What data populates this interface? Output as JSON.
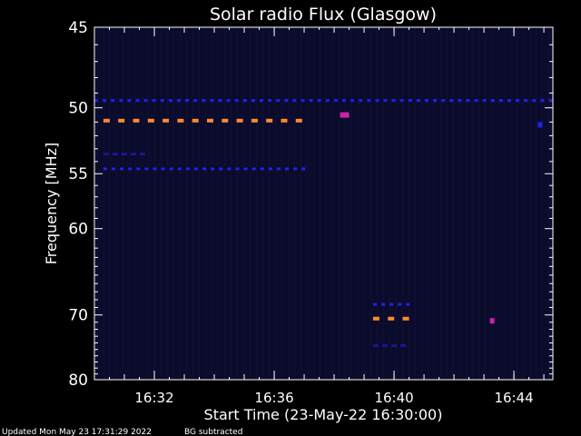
{
  "chart_data": {
    "type": "heatmap",
    "title": "Solar radio Flux (Glasgow)",
    "xlabel": "Start Time (23-May-22 16:30:00)",
    "ylabel": "Frequency [MHz]",
    "x_unit": "minutes after 16:30:00",
    "xlim": [
      0,
      15.3
    ],
    "ylim": [
      45,
      80
    ],
    "y_ticks": [
      45,
      50,
      55,
      60,
      70,
      80
    ],
    "x_ticks": [
      {
        "minute": 2,
        "label": "16:32"
      },
      {
        "minute": 6,
        "label": "16:36"
      },
      {
        "minute": 10,
        "label": "16:40"
      },
      {
        "minute": 14,
        "label": "16:44"
      }
    ],
    "background_color": "#0b0b2a",
    "colors": {
      "blue": "#2020ee",
      "orange": "#ff8a30",
      "magenta": "#cc22aa"
    },
    "features": [
      {
        "name": "dashed line",
        "freq_mhz": 49.5,
        "t_start": 0,
        "t_end": 15.3,
        "color": "blue",
        "pattern": "dashed"
      },
      {
        "name": "dashed line",
        "freq_mhz": 50.9,
        "t_start": 0.3,
        "t_end": 7.0,
        "color": "orange",
        "pattern": "dashed"
      },
      {
        "name": "dashed line",
        "freq_mhz": 54.6,
        "t_start": 0.3,
        "t_end": 7.0,
        "color": "blue",
        "pattern": "dashed"
      },
      {
        "name": "dashed line",
        "freq_mhz": 53.4,
        "t_start": 0.3,
        "t_end": 1.8,
        "color": "blue",
        "pattern": "faint"
      },
      {
        "name": "burst",
        "freq_mhz": 50.5,
        "t_start": 8.2,
        "t_end": 8.5,
        "color": "magenta",
        "pattern": "solid"
      },
      {
        "name": "dashed line",
        "freq_mhz": 68.6,
        "t_start": 9.3,
        "t_end": 10.5,
        "color": "blue",
        "pattern": "dashed"
      },
      {
        "name": "dashed line",
        "freq_mhz": 70.5,
        "t_start": 9.3,
        "t_end": 10.5,
        "color": "orange",
        "pattern": "dashed"
      },
      {
        "name": "dashed line",
        "freq_mhz": 74.4,
        "t_start": 9.3,
        "t_end": 10.5,
        "color": "blue",
        "pattern": "faint"
      },
      {
        "name": "burst",
        "freq_mhz": 70.8,
        "t_start": 13.2,
        "t_end": 13.35,
        "color": "magenta",
        "pattern": "solid"
      },
      {
        "name": "burst",
        "freq_mhz": 51.2,
        "t_start": 14.8,
        "t_end": 14.95,
        "color": "blue",
        "pattern": "solid"
      }
    ]
  },
  "footer": {
    "updated": "Updated Mon May 23 17:31:29 2022",
    "note": "BG subtracted"
  }
}
